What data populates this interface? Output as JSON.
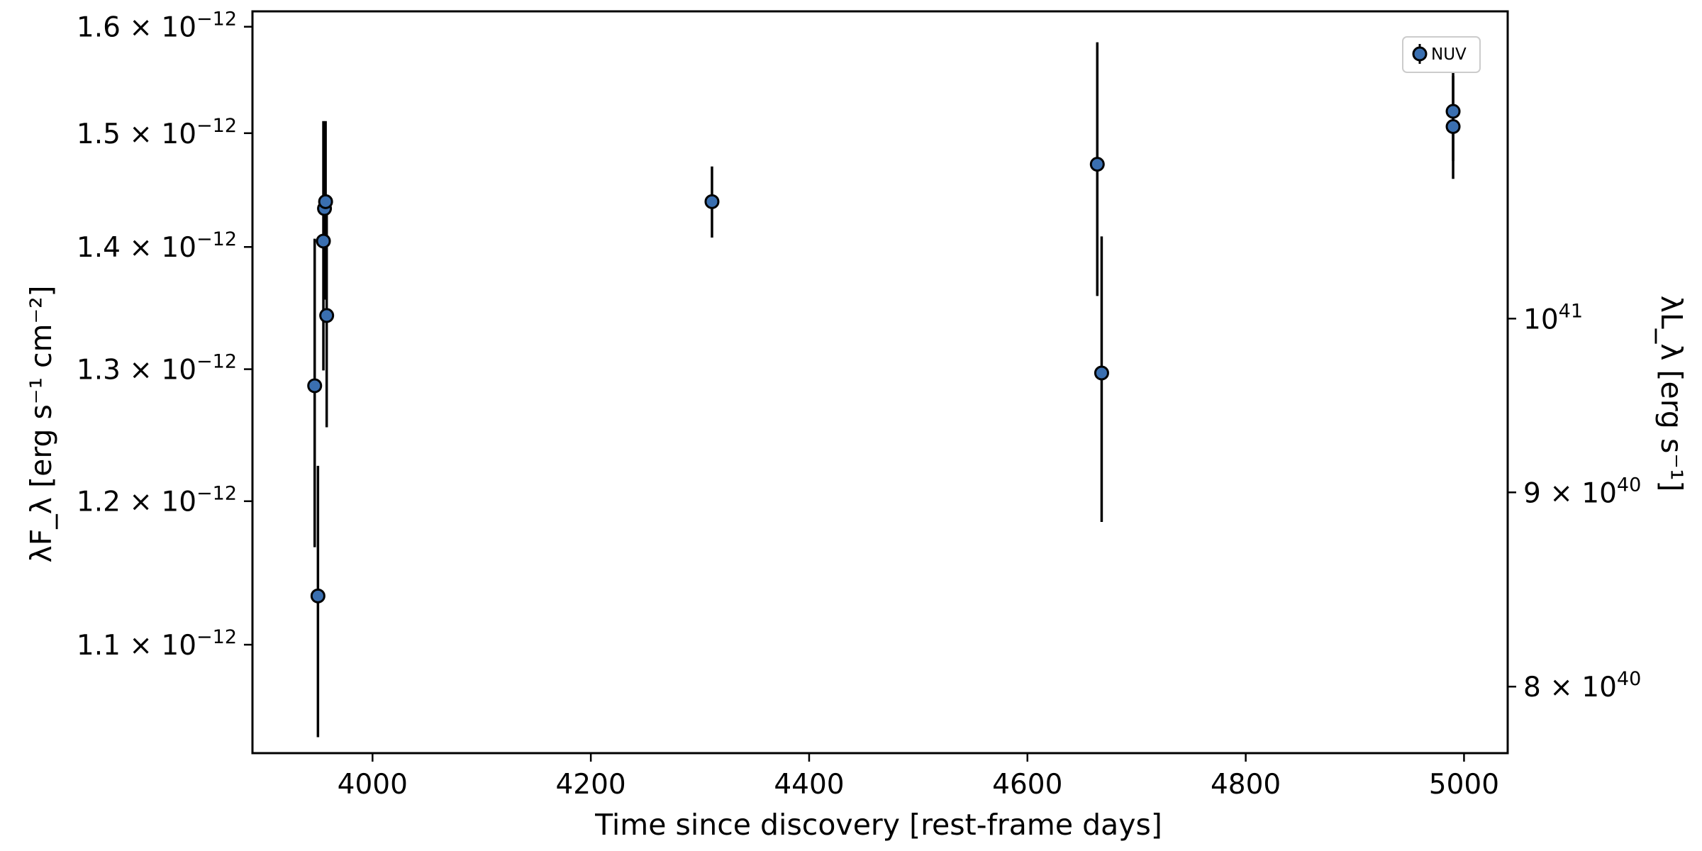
{
  "chart_data": {
    "type": "scatter",
    "title": "",
    "xlabel": "Time since discovery [rest-frame days]",
    "ylabel": "λF_λ [erg s⁻¹ cm⁻²]",
    "y2label": "λL_λ [erg s⁻¹]",
    "xlim": [
      3890,
      5040
    ],
    "ylim": [
      1.03e-12,
      1.615e-12
    ],
    "yscale": "log",
    "y2scale": "log",
    "grid": false,
    "legend_position": "top-right",
    "marker_color": "#3a6fb0",
    "xticks": [
      4000,
      4200,
      4400,
      4600,
      4800,
      5000
    ],
    "yticks": [
      {
        "mantissa": "1.1",
        "exponent": "−12",
        "value": 1.1e-12
      },
      {
        "mantissa": "1.2",
        "exponent": "−12",
        "value": 1.2e-12
      },
      {
        "mantissa": "1.3",
        "exponent": "−12",
        "value": 1.3e-12
      },
      {
        "mantissa": "1.4",
        "exponent": "−12",
        "value": 1.4e-12
      },
      {
        "mantissa": "1.5",
        "exponent": "−12",
        "value": 1.5e-12
      },
      {
        "mantissa": "1.6",
        "exponent": "−12",
        "value": 1.6e-12
      }
    ],
    "y2ticks": [
      {
        "mantissa": "8",
        "exponent": "40",
        "value": 8e+40
      },
      {
        "mantissa": "9",
        "exponent": "40",
        "value": 9e+40
      },
      {
        "mantissa": "",
        "exponent": "41",
        "value": 1e+41
      }
    ],
    "y2_per_y1": 7.46e+52,
    "series": [
      {
        "name": "NUV",
        "color": "#3a6fb0",
        "points": [
          {
            "x": 3947,
            "y": 1.287e-12,
            "yerr": 1.2e-13
          },
          {
            "x": 3950,
            "y": 1.133e-12,
            "yerr": 9.3e-14
          },
          {
            "x": 3955,
            "y": 1.405e-12,
            "yerr": 1.06e-13
          },
          {
            "x": 3956,
            "y": 1.433e-12,
            "yerr": 7.7e-14
          },
          {
            "x": 3957,
            "y": 1.439e-12,
            "yerr": 7.2e-14
          },
          {
            "x": 3958,
            "y": 1.343e-12,
            "yerr": 8.8e-14
          },
          {
            "x": 4311,
            "y": 1.439e-12,
            "yerr": 3.1e-14
          },
          {
            "x": 4664,
            "y": 1.472e-12,
            "yerr": 1.13e-13
          },
          {
            "x": 4668,
            "y": 1.297e-12,
            "yerr": 1.12e-13
          },
          {
            "x": 4990,
            "y": 1.506e-12,
            "yerr": 4.7e-14
          },
          {
            "x": 4990,
            "y": 1.52e-12,
            "yerr": 4.5e-14
          }
        ]
      }
    ]
  }
}
